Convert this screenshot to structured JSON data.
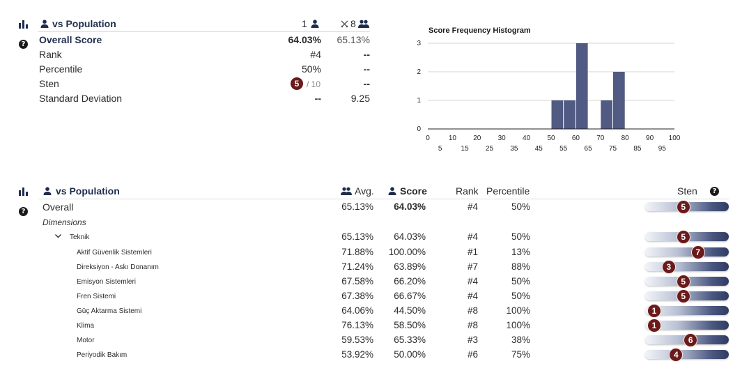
{
  "summary": {
    "header_label": "vs Population",
    "user_col": "1",
    "pop_col": "8",
    "rows": [
      {
        "label": "Overall Score",
        "user": "64.03%",
        "pop": "65.13%",
        "bold": true
      },
      {
        "label": "Rank",
        "user": "#4",
        "pop": "--"
      },
      {
        "label": "Percentile",
        "user": "50%",
        "pop": "--"
      },
      {
        "label": "Sten",
        "user": "5",
        "user_suffix": "/ 10",
        "pop": "--"
      },
      {
        "label": "Standard Deviation",
        "user": "--",
        "pop": "9.25"
      }
    ]
  },
  "chart_data": {
    "type": "bar",
    "title": "Score Frequency Histogram",
    "xlabel": "",
    "ylabel": "",
    "xlim": [
      0,
      100
    ],
    "ylim": [
      0,
      3
    ],
    "bin_width": 5,
    "bins": [
      {
        "x": 50,
        "value": 1
      },
      {
        "x": 55,
        "value": 1
      },
      {
        "x": 60,
        "value": 3
      },
      {
        "x": 70,
        "value": 1
      },
      {
        "x": 75,
        "value": 2
      }
    ],
    "x_ticks_top": [
      "0",
      "10",
      "20",
      "30",
      "40",
      "50",
      "60",
      "70",
      "80",
      "90",
      "100"
    ],
    "x_ticks_bottom": [
      "5",
      "15",
      "25",
      "35",
      "45",
      "55",
      "65",
      "75",
      "85",
      "95"
    ],
    "y_ticks": [
      "0",
      "1",
      "2",
      "3"
    ],
    "colors": {
      "bar": "#505a82",
      "grid": "#d6d6d6"
    }
  },
  "table": {
    "header_label": "vs Population",
    "col_avg": "Avg.",
    "col_score": "Score",
    "col_rank": "Rank",
    "col_percentile": "Percentile",
    "col_sten": "Sten",
    "dimensions_label": "Dimensions",
    "overall": {
      "label": "Overall",
      "avg": "65.13%",
      "score": "64.03%",
      "rank": "#4",
      "percentile": "50%",
      "sten": 5
    },
    "group": {
      "label": "Teknik",
      "avg": "65.13%",
      "score": "64.03%",
      "rank": "#4",
      "percentile": "50%",
      "sten": 5
    },
    "items": [
      {
        "label": "Aktif Güvenlik Sistemleri",
        "avg": "71.88%",
        "score": "100.00%",
        "rank": "#1",
        "percentile": "13%",
        "sten": 7
      },
      {
        "label": "Direksiyon - Askı Donanım",
        "avg": "71.24%",
        "score": "63.89%",
        "rank": "#7",
        "percentile": "88%",
        "sten": 3
      },
      {
        "label": "Emisyon Sistemleri",
        "avg": "67.58%",
        "score": "66.20%",
        "rank": "#4",
        "percentile": "50%",
        "sten": 5
      },
      {
        "label": "Fren Sistemi",
        "avg": "67.38%",
        "score": "66.67%",
        "rank": "#4",
        "percentile": "50%",
        "sten": 5
      },
      {
        "label": "Güç Aktarma Sistemi",
        "avg": "64.06%",
        "score": "44.50%",
        "rank": "#8",
        "percentile": "100%",
        "sten": 1
      },
      {
        "label": "Klima",
        "avg": "76.13%",
        "score": "58.50%",
        "rank": "#8",
        "percentile": "100%",
        "sten": 1
      },
      {
        "label": "Motor",
        "avg": "59.53%",
        "score": "65.33%",
        "rank": "#3",
        "percentile": "38%",
        "sten": 6
      },
      {
        "label": "Periyodik Bakım",
        "avg": "53.92%",
        "score": "50.00%",
        "rank": "#6",
        "percentile": "75%",
        "sten": 4
      }
    ]
  },
  "icons": {
    "stats": "bar-chart-icon",
    "person": "person-icon",
    "group": "group-icon",
    "crossed_swords": "crossed-swords-icon",
    "help": "help-icon",
    "expand": "chevron-down-icon"
  }
}
